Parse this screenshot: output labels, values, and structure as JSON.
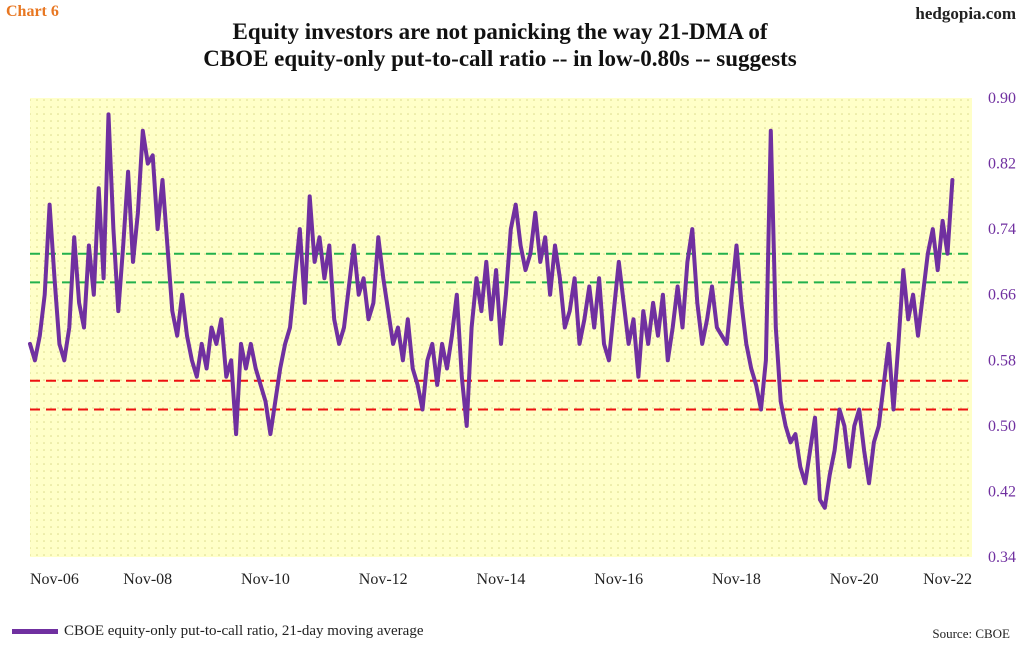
{
  "header": {
    "chart_number": "Chart 6",
    "site": "hedgopia.com",
    "title_line1": "Equity investors are not panicking the way 21-DMA of",
    "title_line2": "CBOE equity-only put-to-call ratio -- in low-0.80s -- suggests"
  },
  "legend": {
    "label": "CBOE equity-only put-to-call ratio, 21-day moving average"
  },
  "source": "Source: CBOE",
  "colors": {
    "series": "#7030a0",
    "plot_background": "#ffffc8",
    "green_lines": "#22b14c",
    "red_lines": "#ee1111",
    "y_tick_labels": "#7030a0"
  },
  "chart_data": {
    "type": "line",
    "grid": false,
    "ylim": [
      0.34,
      0.9
    ],
    "y_axis_side": "right",
    "yticks": [
      "0.90",
      "0.82",
      "0.74",
      "0.66",
      "0.58",
      "0.50",
      "0.42",
      "0.34"
    ],
    "xlim": [
      "2006-11",
      "2022-11"
    ],
    "xticks": [
      "Nov-06",
      "Nov-08",
      "Nov-10",
      "Nov-12",
      "Nov-14",
      "Nov-16",
      "Nov-18",
      "Nov-20",
      "Nov-22"
    ],
    "horizontal_lines": [
      {
        "y": 0.71,
        "color": "green",
        "style": "dashed"
      },
      {
        "y": 0.675,
        "color": "green",
        "style": "dashed"
      },
      {
        "y": 0.555,
        "color": "red",
        "style": "dashed"
      },
      {
        "y": 0.52,
        "color": "red",
        "style": "dashed"
      }
    ],
    "series": [
      {
        "name": "CBOE equity-only put-to-call ratio, 21-day moving average",
        "points": [
          [
            "2006-11",
            0.6
          ],
          [
            "2006-12",
            0.58
          ],
          [
            "2007-01",
            0.61
          ],
          [
            "2007-02",
            0.66
          ],
          [
            "2007-03",
            0.77
          ],
          [
            "2007-04",
            0.68
          ],
          [
            "2007-05",
            0.6
          ],
          [
            "2007-06",
            0.58
          ],
          [
            "2007-07",
            0.62
          ],
          [
            "2007-08",
            0.73
          ],
          [
            "2007-09",
            0.65
          ],
          [
            "2007-10",
            0.62
          ],
          [
            "2007-11",
            0.72
          ],
          [
            "2007-12",
            0.66
          ],
          [
            "2008-01",
            0.79
          ],
          [
            "2008-02",
            0.68
          ],
          [
            "2008-03",
            0.88
          ],
          [
            "2008-04",
            0.74
          ],
          [
            "2008-05",
            0.64
          ],
          [
            "2008-06",
            0.72
          ],
          [
            "2008-07",
            0.81
          ],
          [
            "2008-08",
            0.7
          ],
          [
            "2008-09",
            0.76
          ],
          [
            "2008-10",
            0.86
          ],
          [
            "2008-11",
            0.82
          ],
          [
            "2008-12",
            0.83
          ],
          [
            "2009-01",
            0.74
          ],
          [
            "2009-02",
            0.8
          ],
          [
            "2009-03",
            0.72
          ],
          [
            "2009-04",
            0.64
          ],
          [
            "2009-05",
            0.61
          ],
          [
            "2009-06",
            0.66
          ],
          [
            "2009-07",
            0.61
          ],
          [
            "2009-08",
            0.58
          ],
          [
            "2009-09",
            0.56
          ],
          [
            "2009-10",
            0.6
          ],
          [
            "2009-11",
            0.57
          ],
          [
            "2009-12",
            0.62
          ],
          [
            "2010-01",
            0.6
          ],
          [
            "2010-02",
            0.63
          ],
          [
            "2010-03",
            0.56
          ],
          [
            "2010-04",
            0.58
          ],
          [
            "2010-05",
            0.49
          ],
          [
            "2010-06",
            0.6
          ],
          [
            "2010-07",
            0.57
          ],
          [
            "2010-08",
            0.6
          ],
          [
            "2010-09",
            0.57
          ],
          [
            "2010-10",
            0.55
          ],
          [
            "2010-11",
            0.53
          ],
          [
            "2010-12",
            0.49
          ],
          [
            "2011-01",
            0.53
          ],
          [
            "2011-02",
            0.57
          ],
          [
            "2011-03",
            0.6
          ],
          [
            "2011-04",
            0.62
          ],
          [
            "2011-05",
            0.68
          ],
          [
            "2011-06",
            0.74
          ],
          [
            "2011-07",
            0.65
          ],
          [
            "2011-08",
            0.78
          ],
          [
            "2011-09",
            0.7
          ],
          [
            "2011-10",
            0.73
          ],
          [
            "2011-11",
            0.68
          ],
          [
            "2011-12",
            0.72
          ],
          [
            "2012-01",
            0.63
          ],
          [
            "2012-02",
            0.6
          ],
          [
            "2012-03",
            0.62
          ],
          [
            "2012-04",
            0.67
          ],
          [
            "2012-05",
            0.72
          ],
          [
            "2012-06",
            0.66
          ],
          [
            "2012-07",
            0.68
          ],
          [
            "2012-08",
            0.63
          ],
          [
            "2012-09",
            0.65
          ],
          [
            "2012-10",
            0.73
          ],
          [
            "2012-11",
            0.68
          ],
          [
            "2012-12",
            0.64
          ],
          [
            "2013-01",
            0.6
          ],
          [
            "2013-02",
            0.62
          ],
          [
            "2013-03",
            0.58
          ],
          [
            "2013-04",
            0.63
          ],
          [
            "2013-05",
            0.57
          ],
          [
            "2013-06",
            0.55
          ],
          [
            "2013-07",
            0.52
          ],
          [
            "2013-08",
            0.58
          ],
          [
            "2013-09",
            0.6
          ],
          [
            "2013-10",
            0.55
          ],
          [
            "2013-11",
            0.6
          ],
          [
            "2013-12",
            0.57
          ],
          [
            "2014-01",
            0.61
          ],
          [
            "2014-02",
            0.66
          ],
          [
            "2014-03",
            0.56
          ],
          [
            "2014-04",
            0.5
          ],
          [
            "2014-05",
            0.62
          ],
          [
            "2014-06",
            0.68
          ],
          [
            "2014-07",
            0.64
          ],
          [
            "2014-08",
            0.7
          ],
          [
            "2014-09",
            0.63
          ],
          [
            "2014-10",
            0.69
          ],
          [
            "2014-11",
            0.6
          ],
          [
            "2014-12",
            0.66
          ],
          [
            "2015-01",
            0.74
          ],
          [
            "2015-02",
            0.77
          ],
          [
            "2015-03",
            0.72
          ],
          [
            "2015-04",
            0.69
          ],
          [
            "2015-05",
            0.71
          ],
          [
            "2015-06",
            0.76
          ],
          [
            "2015-07",
            0.7
          ],
          [
            "2015-08",
            0.73
          ],
          [
            "2015-09",
            0.66
          ],
          [
            "2015-10",
            0.72
          ],
          [
            "2015-11",
            0.68
          ],
          [
            "2015-12",
            0.62
          ],
          [
            "2016-01",
            0.64
          ],
          [
            "2016-02",
            0.68
          ],
          [
            "2016-03",
            0.6
          ],
          [
            "2016-04",
            0.63
          ],
          [
            "2016-05",
            0.67
          ],
          [
            "2016-06",
            0.62
          ],
          [
            "2016-07",
            0.68
          ],
          [
            "2016-08",
            0.6
          ],
          [
            "2016-09",
            0.58
          ],
          [
            "2016-10",
            0.64
          ],
          [
            "2016-11",
            0.7
          ],
          [
            "2016-12",
            0.65
          ],
          [
            "2017-01",
            0.6
          ],
          [
            "2017-02",
            0.63
          ],
          [
            "2017-03",
            0.56
          ],
          [
            "2017-04",
            0.64
          ],
          [
            "2017-05",
            0.6
          ],
          [
            "2017-06",
            0.65
          ],
          [
            "2017-07",
            0.61
          ],
          [
            "2017-08",
            0.66
          ],
          [
            "2017-09",
            0.58
          ],
          [
            "2017-10",
            0.62
          ],
          [
            "2017-11",
            0.67
          ],
          [
            "2017-12",
            0.62
          ],
          [
            "2018-01",
            0.7
          ],
          [
            "2018-02",
            0.74
          ],
          [
            "2018-03",
            0.65
          ],
          [
            "2018-04",
            0.6
          ],
          [
            "2018-05",
            0.63
          ],
          [
            "2018-06",
            0.67
          ],
          [
            "2018-07",
            0.62
          ],
          [
            "2018-08",
            0.61
          ],
          [
            "2018-09",
            0.6
          ],
          [
            "2018-10",
            0.66
          ],
          [
            "2018-11",
            0.72
          ],
          [
            "2018-12",
            0.65
          ],
          [
            "2019-01",
            0.6
          ],
          [
            "2019-02",
            0.57
          ],
          [
            "2019-03",
            0.55
          ],
          [
            "2019-04",
            0.52
          ],
          [
            "2019-05",
            0.58
          ],
          [
            "2019-06",
            0.86
          ],
          [
            "2019-07",
            0.62
          ],
          [
            "2019-08",
            0.53
          ],
          [
            "2019-09",
            0.5
          ],
          [
            "2019-10",
            0.48
          ],
          [
            "2019-11",
            0.49
          ],
          [
            "2019-12",
            0.45
          ],
          [
            "2020-01",
            0.43
          ],
          [
            "2020-02",
            0.47
          ],
          [
            "2020-03",
            0.51
          ],
          [
            "2020-04",
            0.41
          ],
          [
            "2020-05",
            0.4
          ],
          [
            "2020-06",
            0.44
          ],
          [
            "2020-07",
            0.47
          ],
          [
            "2020-08",
            0.52
          ],
          [
            "2020-09",
            0.5
          ],
          [
            "2020-10",
            0.45
          ],
          [
            "2020-11",
            0.5
          ],
          [
            "2020-12",
            0.52
          ],
          [
            "2021-01",
            0.47
          ],
          [
            "2021-02",
            0.43
          ],
          [
            "2021-03",
            0.48
          ],
          [
            "2021-04",
            0.5
          ],
          [
            "2021-05",
            0.55
          ],
          [
            "2021-06",
            0.6
          ],
          [
            "2021-07",
            0.52
          ],
          [
            "2021-08",
            0.6
          ],
          [
            "2021-09",
            0.69
          ],
          [
            "2021-10",
            0.63
          ],
          [
            "2021-11",
            0.66
          ],
          [
            "2021-12",
            0.61
          ],
          [
            "2022-01",
            0.66
          ],
          [
            "2022-02",
            0.71
          ],
          [
            "2022-03",
            0.74
          ],
          [
            "2022-04",
            0.69
          ],
          [
            "2022-05",
            0.75
          ],
          [
            "2022-06",
            0.71
          ],
          [
            "2022-07",
            0.8
          ]
        ]
      }
    ]
  }
}
